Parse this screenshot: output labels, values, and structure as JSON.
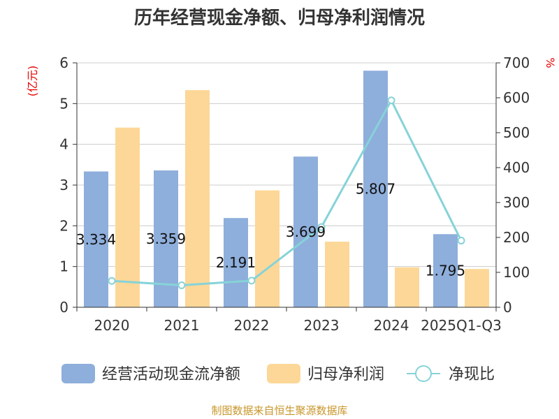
{
  "chart_data": {
    "type": "bar",
    "title": "历年经营现金净额、归母净利润情况",
    "left_unit": "(亿元)",
    "right_unit": "%",
    "categories": [
      "2020",
      "2021",
      "2022",
      "2023",
      "2024",
      "2025Q1-Q3"
    ],
    "ylim_left": [
      0,
      6
    ],
    "yticks_left": [
      "0",
      "1",
      "2",
      "3",
      "4",
      "5",
      "6"
    ],
    "ylim_right": [
      0,
      700
    ],
    "yticks_right": [
      "0",
      "100",
      "200",
      "300",
      "400",
      "500",
      "600",
      "700"
    ],
    "grid": true,
    "legend_position": "bottom",
    "series": [
      {
        "name": "经营活动现金流净额",
        "kind": "bar",
        "axis": "left",
        "color": "#8eaedb",
        "values": [
          3.334,
          3.359,
          2.191,
          3.699,
          5.807,
          1.795
        ],
        "labels": [
          "3.334",
          "3.359",
          "2.191",
          "3.699",
          "5.807",
          "1.795"
        ]
      },
      {
        "name": "归母净利润",
        "kind": "bar",
        "axis": "left",
        "color": "#fdd797",
        "values": [
          4.41,
          5.33,
          2.87,
          1.61,
          0.98,
          0.94
        ]
      },
      {
        "name": "净现比",
        "kind": "line",
        "axis": "right",
        "color": "#86d3d8",
        "values": [
          75.6,
          63.0,
          76.3,
          229.8,
          592.6,
          190.9
        ]
      }
    ],
    "source": "制图数据来自恒生聚源数据库"
  }
}
